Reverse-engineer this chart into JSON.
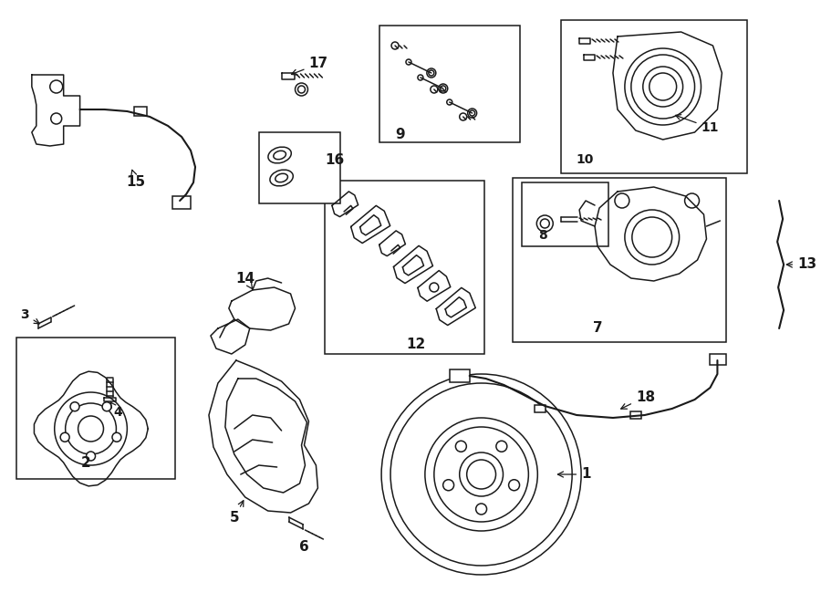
{
  "bg_color": "#ffffff",
  "line_color": "#1a1a1a",
  "lw": 1.1,
  "fig_width": 9.0,
  "fig_height": 6.61,
  "dpi": 100,
  "xlim": [
    0,
    900
  ],
  "ylim": [
    0,
    661
  ]
}
